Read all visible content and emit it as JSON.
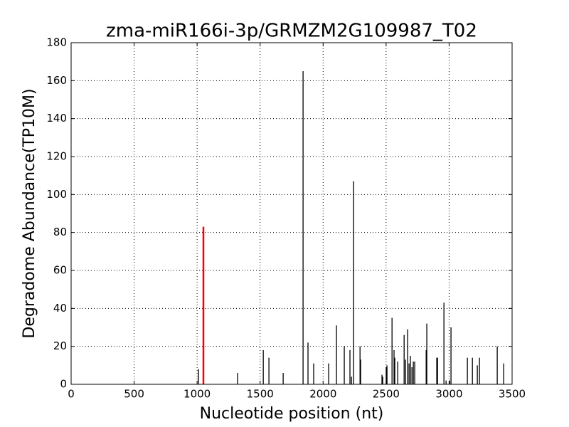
{
  "chart_data": {
    "type": "vlines",
    "title": "zma-miR166i-3p/GRMZM2G109987_T02",
    "x_label": "Nucleotide position (nt)",
    "y_label": "Degradome Abundance(TP10M)",
    "xlim": [
      0,
      3500
    ],
    "ylim": [
      0,
      180
    ],
    "xticks": [
      0,
      500,
      1000,
      1500,
      2000,
      2500,
      3000,
      3500
    ],
    "yticks": [
      0,
      20,
      40,
      60,
      80,
      100,
      120,
      140,
      160,
      180
    ],
    "grid": true,
    "series": [
      {
        "color": "#000000",
        "x": [
          1011,
          1321,
          1525,
          1570,
          1683,
          1841,
          1880,
          1925,
          2044,
          2106,
          2168,
          2213,
          2225,
          2242,
          2293,
          2298,
          2467,
          2473,
          2501,
          2507,
          2547,
          2563,
          2569,
          2592,
          2643,
          2654,
          2671,
          2682,
          2693,
          2705,
          2716,
          2727,
          2818,
          2823,
          2902,
          2908,
          2959,
          2976,
          3004,
          3015,
          3145,
          3185,
          3224,
          3241,
          3382,
          3433
        ],
        "values": [
          8,
          6,
          18,
          14,
          6,
          165,
          22,
          11,
          11,
          31,
          20,
          18,
          4,
          107,
          20,
          13,
          5,
          4,
          9,
          10,
          35,
          18,
          14,
          12,
          26,
          13,
          29,
          11,
          15,
          9,
          12,
          12,
          18,
          32,
          14,
          14,
          43,
          2,
          2,
          30,
          14,
          14,
          10,
          14,
          20,
          11
        ]
      },
      {
        "color": "#ff0000",
        "x": [
          1050
        ],
        "values": [
          83
        ]
      }
    ]
  }
}
